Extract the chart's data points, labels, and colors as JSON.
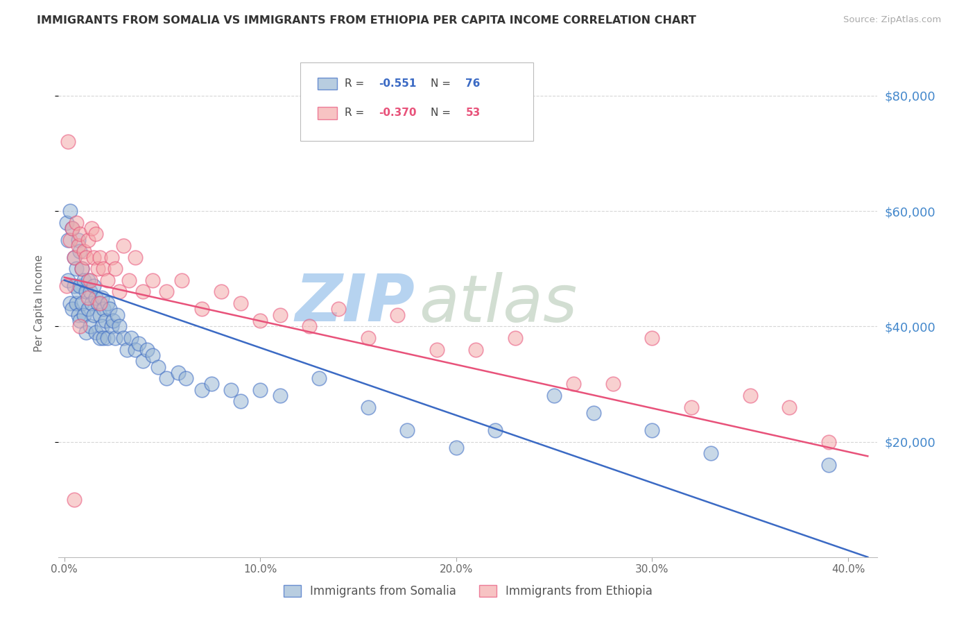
{
  "title": "IMMIGRANTS FROM SOMALIA VS IMMIGRANTS FROM ETHIOPIA PER CAPITA INCOME CORRELATION CHART",
  "source": "Source: ZipAtlas.com",
  "ylabel": "Per Capita Income",
  "xlabel_ticks": [
    "0.0%",
    "10.0%",
    "20.0%",
    "30.0%",
    "40.0%"
  ],
  "xlabel_tick_vals": [
    0.0,
    0.1,
    0.2,
    0.3,
    0.4
  ],
  "ytick_labels": [
    "$20,000",
    "$40,000",
    "$60,000",
    "$80,000"
  ],
  "ytick_vals": [
    20000,
    40000,
    60000,
    80000
  ],
  "ylim": [
    0,
    88000
  ],
  "xlim": [
    -0.003,
    0.415
  ],
  "somalia_R": "-0.551",
  "somalia_N": "76",
  "ethiopia_R": "-0.370",
  "ethiopia_N": "53",
  "somalia_color": "#9BB8D4",
  "ethiopia_color": "#F4AAAA",
  "somalia_line_color": "#3B6AC4",
  "ethiopia_line_color": "#E8527A",
  "watermark_zip": "ZIP",
  "watermark_atlas": "atlas",
  "watermark_color": "#C8DCF0",
  "watermark_atlas_color": "#C8D8C8",
  "background_color": "#FFFFFF",
  "grid_color": "#CCCCCC",
  "title_color": "#333333",
  "right_tick_color": "#4488CC",
  "somalia_x": [
    0.001,
    0.002,
    0.002,
    0.003,
    0.003,
    0.004,
    0.004,
    0.005,
    0.005,
    0.006,
    0.006,
    0.007,
    0.007,
    0.007,
    0.008,
    0.008,
    0.008,
    0.009,
    0.009,
    0.01,
    0.01,
    0.011,
    0.011,
    0.012,
    0.012,
    0.013,
    0.013,
    0.014,
    0.015,
    0.015,
    0.016,
    0.016,
    0.017,
    0.018,
    0.018,
    0.019,
    0.019,
    0.02,
    0.02,
    0.021,
    0.022,
    0.022,
    0.023,
    0.024,
    0.025,
    0.026,
    0.027,
    0.028,
    0.03,
    0.032,
    0.034,
    0.036,
    0.038,
    0.04,
    0.042,
    0.045,
    0.048,
    0.052,
    0.058,
    0.062,
    0.07,
    0.075,
    0.085,
    0.09,
    0.1,
    0.11,
    0.13,
    0.155,
    0.175,
    0.2,
    0.22,
    0.25,
    0.27,
    0.3,
    0.33,
    0.39
  ],
  "somalia_y": [
    58000,
    55000,
    48000,
    60000,
    44000,
    57000,
    43000,
    52000,
    47000,
    50000,
    44000,
    55000,
    46000,
    42000,
    53000,
    47000,
    41000,
    50000,
    44000,
    48000,
    42000,
    46000,
    39000,
    48000,
    43000,
    46000,
    40000,
    44000,
    47000,
    42000,
    45000,
    39000,
    44000,
    42000,
    38000,
    45000,
    40000,
    43000,
    38000,
    41000,
    44000,
    38000,
    43000,
    40000,
    41000,
    38000,
    42000,
    40000,
    38000,
    36000,
    38000,
    36000,
    37000,
    34000,
    36000,
    35000,
    33000,
    31000,
    32000,
    31000,
    29000,
    30000,
    29000,
    27000,
    29000,
    28000,
    31000,
    26000,
    22000,
    19000,
    22000,
    28000,
    25000,
    22000,
    18000,
    16000
  ],
  "ethiopia_x": [
    0.001,
    0.002,
    0.003,
    0.004,
    0.005,
    0.006,
    0.007,
    0.008,
    0.009,
    0.01,
    0.011,
    0.012,
    0.013,
    0.014,
    0.015,
    0.016,
    0.017,
    0.018,
    0.02,
    0.022,
    0.024,
    0.026,
    0.028,
    0.03,
    0.033,
    0.036,
    0.04,
    0.045,
    0.052,
    0.06,
    0.07,
    0.08,
    0.09,
    0.1,
    0.11,
    0.125,
    0.14,
    0.155,
    0.17,
    0.19,
    0.21,
    0.23,
    0.26,
    0.28,
    0.3,
    0.32,
    0.35,
    0.37,
    0.39,
    0.005,
    0.008,
    0.012,
    0.018
  ],
  "ethiopia_y": [
    47000,
    72000,
    55000,
    57000,
    52000,
    58000,
    54000,
    56000,
    50000,
    53000,
    52000,
    55000,
    48000,
    57000,
    52000,
    56000,
    50000,
    52000,
    50000,
    48000,
    52000,
    50000,
    46000,
    54000,
    48000,
    52000,
    46000,
    48000,
    46000,
    48000,
    43000,
    46000,
    44000,
    41000,
    42000,
    40000,
    43000,
    38000,
    42000,
    36000,
    36000,
    38000,
    30000,
    30000,
    38000,
    26000,
    28000,
    26000,
    20000,
    10000,
    40000,
    45000,
    44000
  ]
}
